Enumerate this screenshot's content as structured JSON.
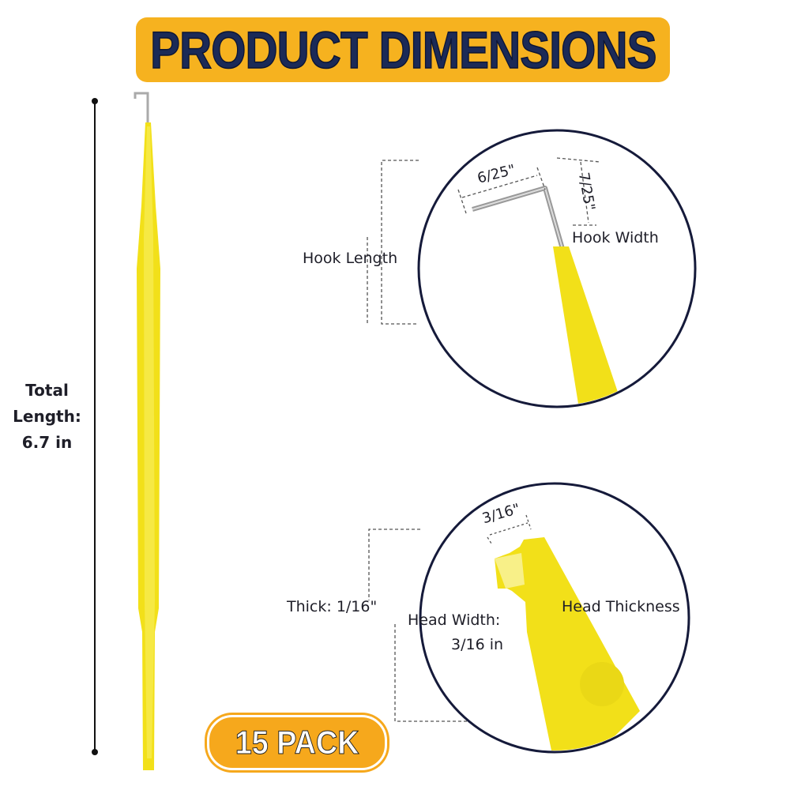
{
  "title": "PRODUCT DIMENSIONS",
  "total_length": {
    "line1": "Total",
    "line2": "Length:",
    "line3": "6.7 in"
  },
  "hook": {
    "length_label": "Hook Length",
    "width_label": "Hook Width",
    "dim_a": "6/25\"",
    "dim_b": "7/25\""
  },
  "head": {
    "thick_label": "Thick: 1/16\"",
    "width_label_1": "Head Width:",
    "width_label_2": "3/16 in",
    "thickness_label": "Head Thickness",
    "dim": "3/16\""
  },
  "badge": "15 PACK",
  "colors": {
    "title_bg": "#f6b21f",
    "title_text": "#1b2a57",
    "tool": "#f2e019",
    "badge": "#f6a81c",
    "circle": "#151a3a"
  }
}
